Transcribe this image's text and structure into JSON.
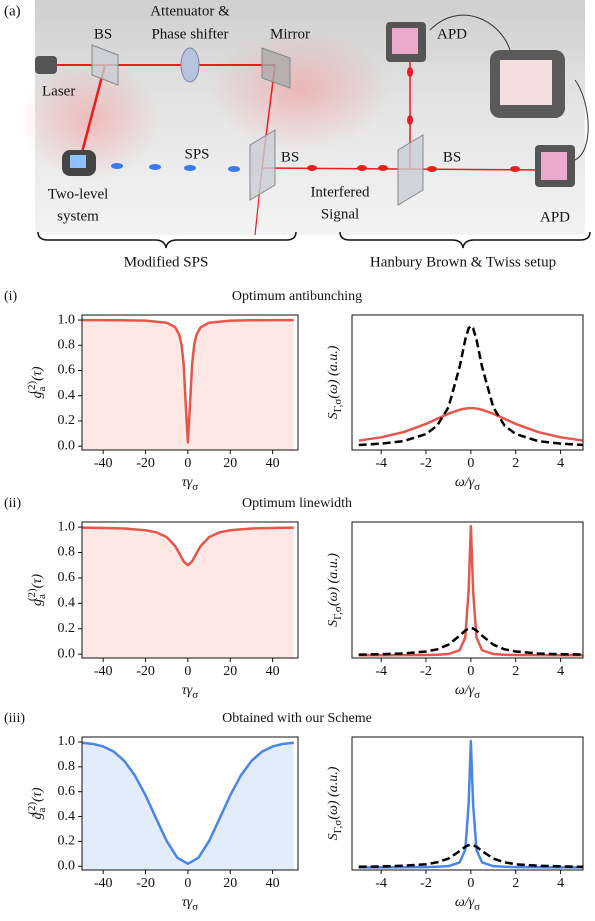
{
  "diagram": {
    "panel_label": "(a)",
    "labels": [
      "BS",
      "Attenuator &",
      "Phase shifter",
      "Mirror",
      "APD",
      "Laser",
      "SPS",
      "BS",
      "BS",
      "Two-level",
      "system",
      "Interfered",
      "Signal",
      "APD",
      "Modified SPS",
      "Hanbury Brown & Twiss setup"
    ]
  },
  "chart_data": [
    {
      "type": "line",
      "panel_label": "(i)",
      "title": "Optimum antibunching",
      "x": [
        -50,
        -40,
        -30,
        -20,
        -10,
        -6,
        -4,
        -3,
        -2,
        -1,
        0,
        1,
        2,
        3,
        4,
        6,
        10,
        20,
        30,
        40,
        50
      ],
      "series": [
        {
          "color": "#e4574a",
          "fill": "#fde8e5",
          "values": [
            0.999,
            0.999,
            0.998,
            0.995,
            0.979,
            0.943,
            0.88,
            0.806,
            0.651,
            0.328,
            0.03,
            0.328,
            0.651,
            0.806,
            0.88,
            0.943,
            0.979,
            0.995,
            0.998,
            0.999,
            0.999
          ]
        }
      ],
      "xlim": [
        -50,
        52
      ],
      "ylim": [
        -0.03,
        1.04
      ],
      "xticks": [
        -40,
        -20,
        0,
        20,
        40
      ],
      "yticks": [
        {
          "value": 0,
          "label": "0.0"
        },
        0.2,
        0.4,
        0.6,
        0.8,
        {
          "value": 1,
          "label": "1.0"
        }
      ],
      "x_label": [
        {
          "text": "τγ"
        },
        {
          "text": "σ",
          "sub": true
        }
      ],
      "y_label": [
        {
          "text": "g"
        },
        {
          "text": "a",
          "sub": true
        },
        {
          "text": "(2)",
          "sup": true
        },
        {
          "text": "(τ)"
        }
      ]
    },
    {
      "type": "line",
      "x": [
        -5,
        -4,
        -3,
        -2,
        -1.5,
        -1,
        -0.5,
        -0.25,
        -0.1,
        0,
        0.1,
        0.25,
        0.5,
        1,
        1.5,
        2,
        3,
        4,
        5
      ],
      "series": [
        {
          "color": "#e4574a",
          "values": [
            0.07,
            0.094,
            0.133,
            0.193,
            0.231,
            0.269,
            0.298,
            0.307,
            0.31,
            0.31,
            0.31,
            0.307,
            0.298,
            0.269,
            0.231,
            0.193,
            0.133,
            0.094,
            0.07
          ]
        },
        {
          "color": "#000000",
          "dash": true,
          "values": [
            0.037,
            0.047,
            0.066,
            0.118,
            0.181,
            0.316,
            0.616,
            0.818,
            0.902,
            0.92,
            0.902,
            0.818,
            0.616,
            0.316,
            0.181,
            0.118,
            0.066,
            0.047,
            0.037
          ]
        }
      ],
      "xlim": [
        -5.3,
        5
      ],
      "ylim": [
        0,
        1
      ],
      "xticks": [
        -4,
        -2,
        0,
        2,
        4
      ],
      "x_label": [
        {
          "text": "ω/γ"
        },
        {
          "text": "σ",
          "sub": true
        }
      ],
      "y_label": [
        {
          "text": "S"
        },
        {
          "text": "Γ,σ",
          "sub": true
        },
        {
          "text": "(ω) (a.u.)"
        }
      ]
    },
    {
      "type": "line",
      "panel_label": "(ii)",
      "title": "Optimum linewidth",
      "x": [
        -50,
        -40,
        -30,
        -20,
        -15,
        -10,
        -6,
        -4,
        -2,
        0,
        2,
        4,
        6,
        10,
        15,
        20,
        30,
        40,
        50
      ],
      "series": [
        {
          "color": "#e4574a",
          "fill": "#fde8e5",
          "values": [
            0.996,
            0.993,
            0.989,
            0.975,
            0.959,
            0.921,
            0.85,
            0.792,
            0.73,
            0.7,
            0.73,
            0.792,
            0.85,
            0.921,
            0.959,
            0.975,
            0.989,
            0.993,
            0.996
          ]
        }
      ],
      "xlim": [
        -50,
        52
      ],
      "ylim": [
        -0.03,
        1.04
      ],
      "xticks": [
        -40,
        -20,
        0,
        20,
        40
      ],
      "yticks": [
        {
          "value": 0,
          "label": "0.0"
        },
        0.2,
        0.4,
        0.6,
        0.8,
        {
          "value": 1,
          "label": "1.0"
        }
      ],
      "x_label": [
        {
          "text": "τγ"
        },
        {
          "text": "σ",
          "sub": true
        }
      ],
      "y_label": [
        {
          "text": "g"
        },
        {
          "text": "a",
          "sub": true
        },
        {
          "text": "(2)",
          "sup": true
        },
        {
          "text": "(τ)"
        }
      ]
    },
    {
      "type": "line",
      "x": [
        -5,
        -4,
        -3,
        -2,
        -1.5,
        -1,
        -0.5,
        -0.25,
        -0.1,
        0,
        0.1,
        0.25,
        0.5,
        1,
        1.5,
        2,
        3,
        4,
        5
      ],
      "series": [
        {
          "color": "#e4574a",
          "values": [
            0.02,
            0.02,
            0.021,
            0.022,
            0.024,
            0.029,
            0.057,
            0.151,
            0.495,
            0.97,
            0.495,
            0.151,
            0.057,
            0.029,
            0.024,
            0.022,
            0.021,
            0.02,
            0.02
          ]
        },
        {
          "color": "#000000",
          "dash": true,
          "values": [
            0.025,
            0.028,
            0.033,
            0.048,
            0.064,
            0.098,
            0.164,
            0.202,
            0.217,
            0.22,
            0.217,
            0.202,
            0.164,
            0.098,
            0.064,
            0.048,
            0.033,
            0.028,
            0.025
          ]
        }
      ],
      "xlim": [
        -5.3,
        5
      ],
      "ylim": [
        0,
        1
      ],
      "xticks": [
        -4,
        -2,
        0,
        2,
        4
      ],
      "x_label": [
        {
          "text": "ω/γ"
        },
        {
          "text": "σ",
          "sub": true
        }
      ],
      "y_label": [
        {
          "text": "S"
        },
        {
          "text": "Γ,σ",
          "sub": true
        },
        {
          "text": "(ω) (a.u.)"
        }
      ]
    },
    {
      "type": "line",
      "panel_label": "(iii)",
      "title": "Obtained with our Scheme",
      "x": [
        -50,
        -45,
        -40,
        -35,
        -30,
        -25,
        -20,
        -15,
        -10,
        -5,
        0,
        5,
        10,
        15,
        20,
        25,
        30,
        35,
        40,
        45,
        50
      ],
      "series": [
        {
          "color": "#4a86e8",
          "fill": "#e3ecfb",
          "values": [
            0.994,
            0.985,
            0.964,
            0.922,
            0.847,
            0.73,
            0.571,
            0.385,
            0.203,
            0.069,
            0.02,
            0.069,
            0.203,
            0.385,
            0.571,
            0.73,
            0.847,
            0.922,
            0.964,
            0.985,
            0.994
          ]
        }
      ],
      "xlim": [
        -50,
        52
      ],
      "ylim": [
        -0.03,
        1.04
      ],
      "xticks": [
        -40,
        -20,
        0,
        20,
        40
      ],
      "yticks": [
        {
          "value": 0,
          "label": "0.0"
        },
        0.2,
        0.4,
        0.6,
        0.8,
        {
          "value": 1,
          "label": "1.0"
        }
      ],
      "x_label": [
        {
          "text": "τγ"
        },
        {
          "text": "σ",
          "sub": true
        }
      ],
      "y_label": [
        {
          "text": "g̃"
        },
        {
          "text": "a",
          "sub": true
        },
        {
          "text": "(2)",
          "sup": true
        },
        {
          "text": "(τ)"
        }
      ]
    },
    {
      "type": "line",
      "x": [
        -5,
        -4,
        -3,
        -2,
        -1.5,
        -1,
        -0.5,
        -0.25,
        -0.1,
        0,
        0.1,
        0.25,
        0.5,
        1,
        1.5,
        2,
        3,
        4,
        5
      ],
      "series": [
        {
          "color": "#4a86e8",
          "values": [
            0.02,
            0.02,
            0.021,
            0.022,
            0.024,
            0.029,
            0.057,
            0.151,
            0.495,
            0.97,
            0.495,
            0.151,
            0.057,
            0.029,
            0.024,
            0.022,
            0.021,
            0.02,
            0.02
          ]
        },
        {
          "color": "#000000",
          "dash": true,
          "values": [
            0.024,
            0.027,
            0.032,
            0.043,
            0.058,
            0.086,
            0.142,
            0.175,
            0.187,
            0.19,
            0.187,
            0.175,
            0.142,
            0.086,
            0.058,
            0.043,
            0.032,
            0.027,
            0.024
          ]
        }
      ],
      "xlim": [
        -5.3,
        5
      ],
      "ylim": [
        0,
        1
      ],
      "xticks": [
        -4,
        -2,
        0,
        2,
        4
      ],
      "x_label": [
        {
          "text": "ω/γ"
        },
        {
          "text": "σ",
          "sub": true
        }
      ],
      "y_label": [
        {
          "text": "S"
        },
        {
          "text": "Γ,σ",
          "sub": true
        },
        {
          "text": "(ω) (a.u.)"
        }
      ]
    }
  ]
}
